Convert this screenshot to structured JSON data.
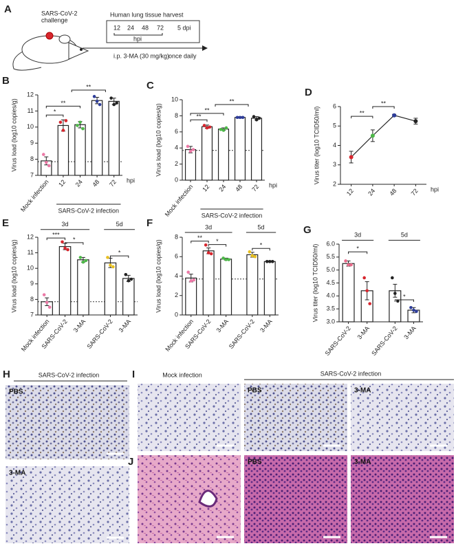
{
  "schematic": {
    "panel": "A",
    "challenge": [
      "SARS-CoV-2",
      "challenge"
    ],
    "harvest": "Human lung tissue harvest",
    "timepoints": [
      "12",
      "24",
      "48",
      "72"
    ],
    "hpi": "hpi",
    "dpi": "5 dpi",
    "treatment": "i.p. 3-MA (30 mg/kg)",
    "frequency": "once daily"
  },
  "chart_data": [
    {
      "type": "bar",
      "panel": "B",
      "y_label": "Virus load (log10 copies/g)",
      "categories": [
        "Mock infection",
        "12",
        "24",
        "48",
        "72"
      ],
      "x_unit": "hpi",
      "group_label": "SARS-CoV-2 infection",
      "values": [
        7.9,
        10.1,
        10.15,
        11.65,
        11.6
      ],
      "errors": [
        0.25,
        0.35,
        0.2,
        0.2,
        0.2
      ],
      "points": [
        [
          8.3,
          7.8,
          7.6
        ],
        [
          10.3,
          9.8,
          10.4
        ],
        [
          10.1,
          10.3,
          9.9
        ],
        [
          11.9,
          11.6,
          11.4
        ],
        [
          11.8,
          11.4,
          11.5
        ]
      ],
      "point_colors": [
        "#ec7aa7",
        "#d7262e",
        "#4db848",
        "#2e3d9a",
        "#222222"
      ],
      "bar_color": "#ffffff",
      "reference_line": 7.85,
      "significance": [
        "*",
        "**",
        "**"
      ],
      "ylim": [
        7,
        12
      ],
      "yticks": [
        7,
        8,
        9,
        10,
        11,
        12
      ]
    },
    {
      "type": "bar",
      "panel": "C",
      "y_label": "Virus load (log10 copies/g)",
      "categories": [
        "Mock infection",
        "12",
        "24",
        "48",
        "72"
      ],
      "x_unit": "hpi",
      "group_label": "SARS-CoV-2 infection",
      "values": [
        3.8,
        6.65,
        6.35,
        7.8,
        7.7
      ],
      "errors": [
        0.4,
        0.2,
        0.15,
        0.1,
        0.2
      ],
      "points": [
        [
          4.2,
          3.6,
          3.8
        ],
        [
          6.8,
          6.5,
          6.6
        ],
        [
          6.3,
          6.2,
          6.5
        ],
        [
          7.8,
          7.8,
          7.8
        ],
        [
          7.9,
          7.5,
          7.7
        ]
      ],
      "point_colors": [
        "#ec7aa7",
        "#d7262e",
        "#4db848",
        "#2e3d9a",
        "#222222"
      ],
      "bar_color": "#ffffff",
      "reference_line": 3.7,
      "significance": [
        "**",
        "**",
        "**"
      ],
      "ylim": [
        0,
        10
      ],
      "yticks": [
        0,
        2,
        4,
        6,
        8,
        10
      ]
    },
    {
      "type": "line",
      "panel": "D",
      "y_label": "Virus titer (log10 TCID50/ml)",
      "categories": [
        "12",
        "24",
        "48",
        "72"
      ],
      "x_unit": "hpi",
      "values": [
        3.4,
        4.5,
        5.55,
        5.25
      ],
      "errors": [
        0.3,
        0.3,
        0.05,
        0.15
      ],
      "point_colors": [
        "#d7262e",
        "#4db848",
        "#2e3d9a",
        "#222222"
      ],
      "color": "#222222",
      "significance": [
        "**",
        "**"
      ],
      "ylim": [
        2,
        6
      ],
      "yticks": [
        2,
        3,
        4,
        5,
        6
      ]
    },
    {
      "type": "bar",
      "panel": "E",
      "y_label": "Virus load (log10 copies/g)",
      "categories": [
        "Mock infection",
        "SARS-CoV-2",
        "3-MA",
        "SARS-CoV-2",
        "3-MA"
      ],
      "group_labels": [
        "3d",
        "5d"
      ],
      "values": [
        7.85,
        11.4,
        10.55,
        10.35,
        9.35
      ],
      "errors": [
        0.25,
        0.2,
        0.15,
        0.3,
        0.2
      ],
      "points": [
        [
          8.3,
          7.8,
          7.5
        ],
        [
          11.7,
          11.3,
          11.2
        ],
        [
          10.7,
          10.4,
          10.5
        ],
        [
          10.7,
          10.2,
          10.1
        ],
        [
          9.6,
          9.2,
          9.3
        ]
      ],
      "point_colors": [
        "#ec7aa7",
        "#d7262e",
        "#4db848",
        "#e8c020",
        "#222222"
      ],
      "bar_color": "#ffffff",
      "reference_line": 7.85,
      "significance": [
        "***",
        "*",
        "*"
      ],
      "ylim": [
        7,
        12
      ],
      "yticks": [
        7,
        8,
        9,
        10,
        11,
        12
      ]
    },
    {
      "type": "bar",
      "panel": "F",
      "y_label": "Virus load (log10 copies/g)",
      "categories": [
        "Mock infection",
        "SARS-CoV-2",
        "3-MA",
        "SARS-CoV-2",
        "3-MA"
      ],
      "group_labels": [
        "3d",
        "5d"
      ],
      "values": [
        3.8,
        6.6,
        5.75,
        6.2,
        5.5
      ],
      "errors": [
        0.4,
        0.3,
        0.1,
        0.25,
        0.05
      ],
      "points": [
        [
          4.4,
          3.5,
          3.6
        ],
        [
          7.2,
          6.4,
          6.3
        ],
        [
          5.85,
          5.7,
          5.7
        ],
        [
          6.5,
          6.1,
          6.0
        ],
        [
          5.5,
          5.5,
          5.5
        ]
      ],
      "point_colors": [
        "#ec7aa7",
        "#d7262e",
        "#4db848",
        "#e8c020",
        "#222222"
      ],
      "bar_color": "#ffffff",
      "reference_line": 3.7,
      "significance": [
        "**",
        "*",
        "*"
      ],
      "ylim": [
        0,
        8
      ],
      "yticks": [
        0,
        2,
        4,
        6,
        8
      ]
    },
    {
      "type": "bar",
      "panel": "G",
      "y_label": "Virus titer (log10 TCID50/ml)",
      "categories": [
        "SARS-CoV-2",
        "3-MA",
        "SARS-CoV-2",
        "3-MA"
      ],
      "group_labels": [
        "3d",
        "5d"
      ],
      "values": [
        5.25,
        4.2,
        4.2,
        3.45
      ],
      "errors": [
        0.1,
        0.35,
        0.25,
        0.1
      ],
      "points": [
        [
          5.35,
          5.2,
          5.2
        ],
        [
          4.7,
          4.2,
          3.7
        ],
        [
          4.7,
          4.1,
          3.8
        ],
        [
          3.55,
          3.45,
          3.4
        ]
      ],
      "point_colors": [
        "#e86a8a",
        "#d7262e",
        "#222222",
        "#2e3d9a"
      ],
      "bar_color": "#ffffff",
      "significance": [
        "*",
        "*"
      ],
      "ylim": [
        3.0,
        6.0
      ],
      "yticks": [
        {
          "value": 3.0,
          "label": "3.0"
        },
        {
          "value": 3.5,
          "label": "3.5"
        },
        {
          "value": 4.0,
          "label": "4.0"
        },
        {
          "value": 4.5,
          "label": "4.5"
        },
        {
          "value": 5.0,
          "label": "5.0"
        },
        {
          "value": 5.5,
          "label": "5.5"
        },
        {
          "value": 6.0,
          "label": "6.0"
        }
      ]
    }
  ],
  "histology": {
    "H": {
      "panel": "H",
      "title": "SARS-CoV-2 infection",
      "labels": [
        "PBS",
        "3-MA"
      ]
    },
    "I": {
      "panel": "I",
      "titles": [
        "Mock infection",
        "SARS-CoV-2 infection"
      ],
      "labels": [
        "PBS",
        "3-MA"
      ]
    },
    "J": {
      "panel": "J",
      "labels": [
        "PBS",
        "3-MA"
      ]
    }
  }
}
